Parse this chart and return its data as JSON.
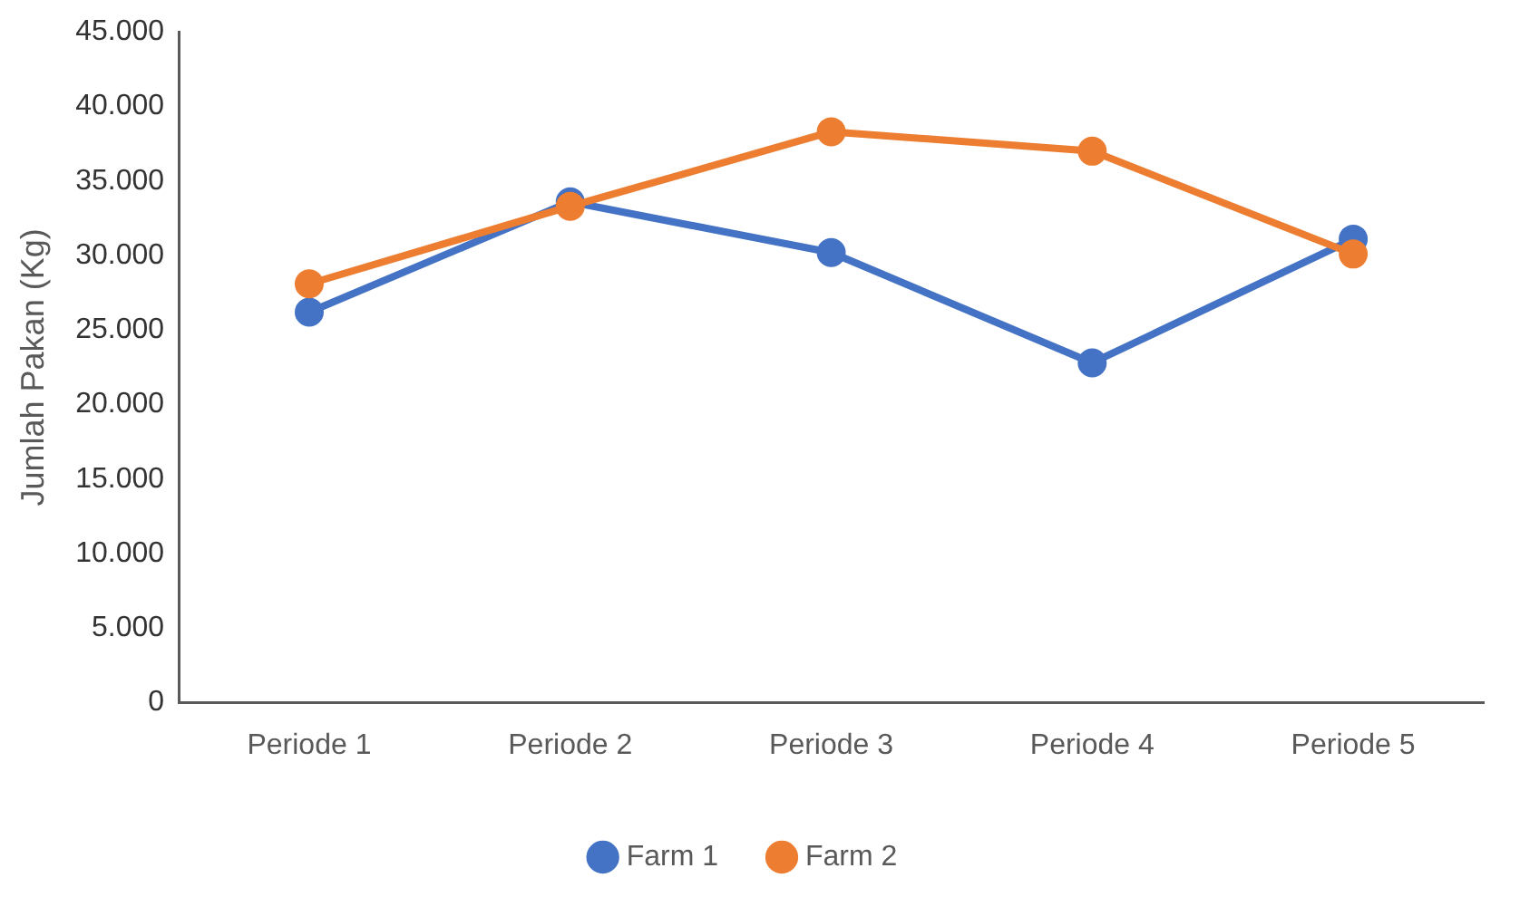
{
  "chart_data": {
    "type": "line",
    "ylabel": "Jumlah Pakan (Kg)",
    "categories": [
      "Periode 1",
      "Periode 2",
      "Periode 3",
      "Periode 4",
      "Periode 5"
    ],
    "series": [
      {
        "name": "Farm 1",
        "color": "#4472c4",
        "values": [
          26200,
          33600,
          30200,
          22800,
          31100
        ]
      },
      {
        "name": "Farm 2",
        "color": "#ed7d31",
        "values": [
          28100,
          33300,
          38300,
          37000,
          30100
        ]
      }
    ],
    "ylim": [
      0,
      45000
    ],
    "yticks": [
      0,
      {
        "value": 5000,
        "label": "5.000"
      },
      {
        "value": 10000,
        "label": "10.000"
      },
      {
        "value": 15000,
        "label": "15.000"
      },
      {
        "value": 20000,
        "label": "20.000"
      },
      {
        "value": 25000,
        "label": "25.000"
      },
      {
        "value": 30000,
        "label": "30.000"
      },
      {
        "value": 35000,
        "label": "35.000"
      },
      {
        "value": 40000,
        "label": "40.000"
      },
      {
        "value": 45000,
        "label": "45.000"
      }
    ],
    "grid": false,
    "legend": "bottom",
    "marker": "circle",
    "line_style": "solid"
  }
}
